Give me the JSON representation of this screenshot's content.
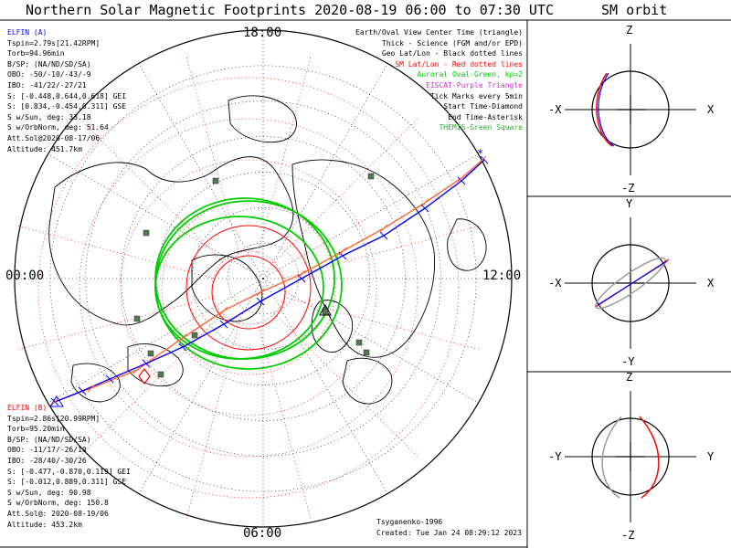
{
  "title": "Northern Solar Magnetic Footprints 2020-08-19 06:00 to 07:30 UTC",
  "sm_orbit_title": "SM orbit",
  "colors": {
    "elfin_a": "#0000ff",
    "elfin_b": "#ff0000",
    "footprint_a": "#0000ff",
    "footprint_b": "#ff6633",
    "auroral_oval": "#00cc00",
    "sm_circle": "#ff0000",
    "grid": "#ff0000",
    "geo": "#000000",
    "station": "#557755",
    "orbit_gray": "#999999"
  },
  "clock_labels": {
    "top": "18:00",
    "left": "00:00",
    "right": "12:00",
    "bottom": "06:00"
  },
  "elfin_a": {
    "name": "ELFIN (A)",
    "lines": [
      "Tspin=2.79s[21.42RPM]",
      "Torb=94.96min",
      "B/SP: (NA/ND/SD/SA)",
      "OBO: -50/-10/-43/-9",
      "IBO: -41/22/-27/21",
      "S: [-0.448,0.644,0.618] GEI",
      "S: [0.834,-0.454,0.311] GSE",
      "S w/Sun, deg: 33.18",
      "S w/OrbNorm, deg: 51.64",
      "Att.Sol@2020-08-17/06",
      "Altitude: 451.7km"
    ]
  },
  "elfin_b": {
    "name": "ELFIN (B)",
    "lines": [
      "Tspin=2.86s[20.99RPM]",
      "Torb=95.20min",
      "B/SP: (NA/ND/SD/SA)",
      "OBO: -11/17/-26/10",
      "IBO: -28/40/-30/26",
      "S: [-0.477,-0.870,0.119] GEI",
      "S: [-0.012,0.889,0.311] GSE",
      "S w/Sun, deg: 90.98",
      "S w/OrbNorm, deg: 150.8",
      "Att.Sol@: 2020-08-19/06",
      "Altitude: 453.2km"
    ]
  },
  "legend": [
    {
      "text": "Earth/Oval View Center Time (triangle)",
      "color": "#000000"
    },
    {
      "text": "Thick - Science (FGM and/or EPD)",
      "color": "#000000"
    },
    {
      "text": "Geo Lat/Lon - Black dotted lines",
      "color": "#000000"
    },
    {
      "text": "SM Lat/Lon - Red dotted lines",
      "color": "#ff0000"
    },
    {
      "text": "Auroral Oval-Green, kp=2",
      "color": "#00cc00"
    },
    {
      "text": "EISCAT-Purple Triangle",
      "color": "#cc33cc"
    },
    {
      "text": "Tick Marks every 5min",
      "color": "#000000"
    },
    {
      "text": "Start Time-Diamond",
      "color": "#000000"
    },
    {
      "text": "End Time-Asterisk",
      "color": "#000000"
    },
    {
      "text": "THEMIS-Green Square",
      "color": "#33aa33"
    }
  ],
  "credits": {
    "author": "Tsyganenko-1996",
    "created": "Created: Tue Jan 24 08:29:12 2023"
  },
  "sm_panels": [
    {
      "top": "Z",
      "bottom": "-Z",
      "left": "-X",
      "right": "X"
    },
    {
      "top": "Y",
      "bottom": "-Y",
      "left": "-X",
      "right": "X"
    },
    {
      "top": "Z",
      "bottom": "-Z",
      "left": "-Y",
      "right": "Y"
    }
  ],
  "chart_data": {
    "type": "scatter",
    "title": "Northern Solar Magnetic Footprints 2020-08-19 06:00 to 07:30 UTC",
    "time_range": [
      "06:00",
      "07:30"
    ],
    "projection": "polar view, north pole at center",
    "clock_labels": [
      "18:00",
      "12:00",
      "06:00",
      "00:00"
    ],
    "series": [
      {
        "name": "ELFIN (A)",
        "color": "#0000ff"
      },
      {
        "name": "ELFIN (B)",
        "color": "#ff0000"
      }
    ],
    "auroral_oval_kp": 2,
    "tick_interval_min": 5
  }
}
